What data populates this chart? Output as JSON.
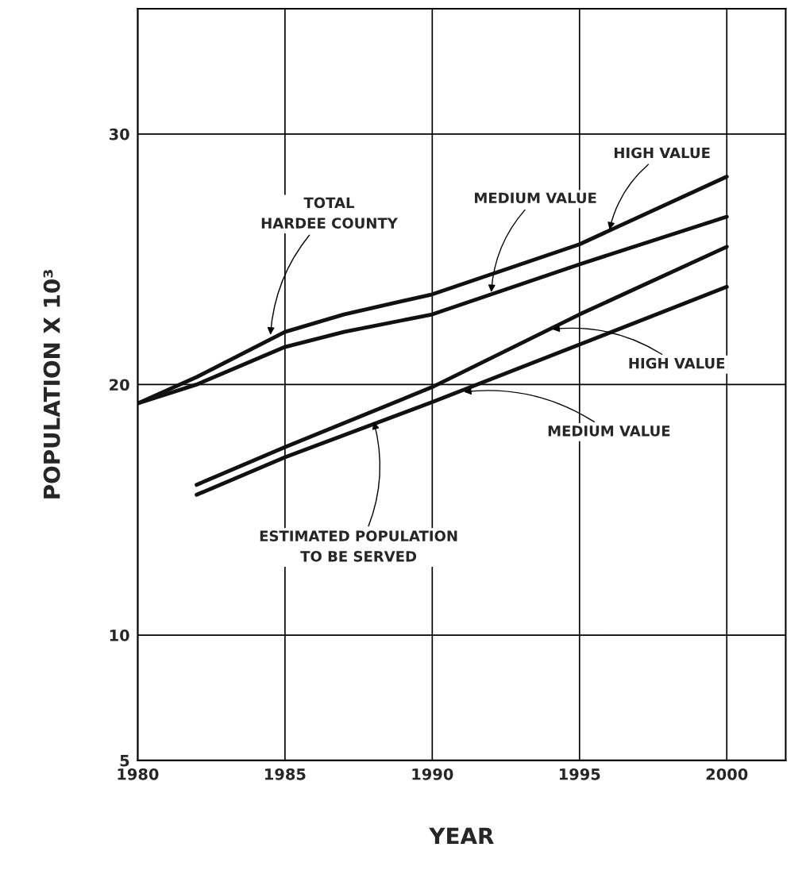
{
  "chart_data": {
    "type": "line",
    "xlabel": "YEAR",
    "ylabel": "POPULATION X 10³",
    "xlim": [
      1980,
      2002
    ],
    "ylim": [
      5,
      35
    ],
    "xticks": [
      1980,
      1985,
      1990,
      1995,
      2000
    ],
    "yticks": [
      5,
      10,
      20,
      30
    ],
    "grid": true,
    "line_style": "solid",
    "marker": "none",
    "series": [
      {
        "color": "#111111",
        "x": [
          1980,
          1982,
          1985,
          1987,
          1990,
          1995,
          2000
        ],
        "values": [
          19.25,
          20.3,
          22.1,
          22.8,
          23.6,
          25.6,
          28.3
        ]
      },
      {
        "color": "#111111",
        "x": [
          1980,
          1982,
          1985,
          1987,
          1990,
          1995,
          2000
        ],
        "values": [
          19.25,
          20.0,
          21.5,
          22.1,
          22.8,
          24.8,
          26.7
        ]
      },
      {
        "color": "#111111",
        "x": [
          1982,
          1985,
          1990,
          1995,
          2000
        ],
        "values": [
          16.0,
          17.5,
          19.9,
          22.8,
          25.5
        ]
      },
      {
        "color": "#111111",
        "x": [
          1982,
          1985,
          1990,
          1995,
          2000
        ],
        "values": [
          15.6,
          17.1,
          19.3,
          21.6,
          23.9
        ]
      }
    ],
    "annotations": [
      {
        "text": "HIGH VALUE",
        "x": 1996,
        "y": 26.1
      },
      {
        "text": "MEDIUM VALUE",
        "x": 1992,
        "y": 23.6
      },
      {
        "text": "TOTAL\nHARDEE COUNTY",
        "x": 1984.5,
        "y": 21.9
      },
      {
        "text": "HIGH VALUE",
        "x": 1994,
        "y": 22.2
      },
      {
        "text": "MEDIUM VALUE",
        "x": 1991,
        "y": 19.7
      },
      {
        "text": "ESTIMATED POPULATION\nTO BE SERVED",
        "x": 1988,
        "y": 18.6
      }
    ]
  }
}
